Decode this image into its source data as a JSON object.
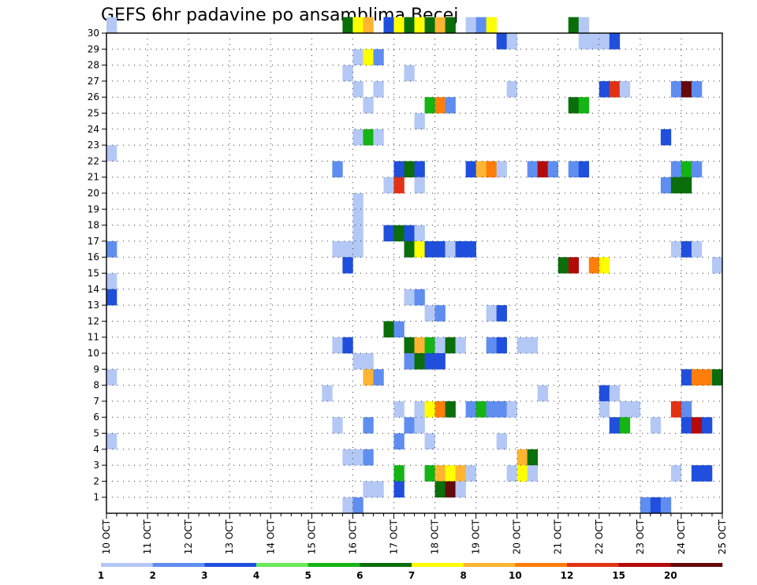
{
  "chart_data": {
    "type": "heatmap",
    "title": "GEFS 6hr padavine po ansamblima Becej",
    "x_ticks": [
      "10 OCT",
      "11 OCT",
      "12 OCT",
      "13 OCT",
      "14 OCT",
      "15 OCT",
      "16 OCT",
      "17 OCT",
      "18 OCT",
      "19 OCT",
      "20 OCT",
      "21 OCT",
      "22 OCT",
      "23 OCT",
      "24 OCT",
      "25 OCT"
    ],
    "y_ticks": [
      "1",
      "2",
      "3",
      "4",
      "5",
      "6",
      "7",
      "8",
      "9",
      "10",
      "11",
      "12",
      "13",
      "14",
      "15",
      "16",
      "17",
      "18",
      "19",
      "20",
      "21",
      "22",
      "23",
      "24",
      "25",
      "26",
      "27",
      "28",
      "29",
      "30"
    ],
    "xlim_steps": [
      0,
      60
    ],
    "ylim_members": [
      0,
      30
    ],
    "time_step_hours": 6,
    "grid": true,
    "legend": {
      "placement": "bottom",
      "labels": [
        "1",
        "2",
        "3",
        "4",
        "5",
        "6",
        "7",
        "8",
        "10",
        "12",
        "15",
        "20"
      ],
      "colors": [
        "#b4c8f5",
        "#5f8ef0",
        "#1f4fdc",
        "#6ce85a",
        "#14b414",
        "#0a6e0a",
        "#ffff00",
        "#ffb432",
        "#ff7d0a",
        "#e13214",
        "#b40a0a",
        "#640a0a"
      ]
    },
    "cells": [
      [
        30,
        0,
        0
      ],
      [
        30,
        23,
        5
      ],
      [
        30,
        24,
        6
      ],
      [
        30,
        25,
        7
      ],
      [
        30,
        27,
        2
      ],
      [
        30,
        28,
        6
      ],
      [
        30,
        29,
        5
      ],
      [
        30,
        30,
        6
      ],
      [
        30,
        31,
        5
      ],
      [
        30,
        32,
        7
      ],
      [
        30,
        33,
        5
      ],
      [
        30,
        35,
        0
      ],
      [
        30,
        36,
        1
      ],
      [
        30,
        37,
        6
      ],
      [
        30,
        45,
        5
      ],
      [
        30,
        46,
        0
      ],
      [
        29,
        38,
        2
      ],
      [
        29,
        39,
        0
      ],
      [
        29,
        46,
        0
      ],
      [
        29,
        47,
        0
      ],
      [
        29,
        48,
        0
      ],
      [
        29,
        49,
        2
      ],
      [
        28,
        24,
        0
      ],
      [
        28,
        25,
        6
      ],
      [
        28,
        26,
        1
      ],
      [
        27,
        23,
        0
      ],
      [
        27,
        29,
        0
      ],
      [
        26,
        24,
        0
      ],
      [
        26,
        26,
        0
      ],
      [
        26,
        39,
        0
      ],
      [
        26,
        48,
        2
      ],
      [
        26,
        49,
        9
      ],
      [
        26,
        50,
        0
      ],
      [
        26,
        55,
        1
      ],
      [
        26,
        56,
        11
      ],
      [
        26,
        57,
        1
      ],
      [
        25,
        25,
        0
      ],
      [
        25,
        31,
        4
      ],
      [
        25,
        32,
        8
      ],
      [
        25,
        33,
        1
      ],
      [
        25,
        45,
        5
      ],
      [
        25,
        46,
        4
      ],
      [
        24,
        30,
        0
      ],
      [
        23,
        24,
        0
      ],
      [
        23,
        25,
        4
      ],
      [
        23,
        26,
        0
      ],
      [
        23,
        54,
        2
      ],
      [
        22,
        0,
        0
      ],
      [
        21,
        22,
        1
      ],
      [
        21,
        28,
        2
      ],
      [
        21,
        29,
        5
      ],
      [
        21,
        30,
        2
      ],
      [
        21,
        35,
        2
      ],
      [
        21,
        36,
        7
      ],
      [
        21,
        37,
        8
      ],
      [
        21,
        38,
        0
      ],
      [
        21,
        41,
        1
      ],
      [
        21,
        42,
        10
      ],
      [
        21,
        43,
        1
      ],
      [
        21,
        45,
        1
      ],
      [
        21,
        46,
        2
      ],
      [
        21,
        55,
        1
      ],
      [
        21,
        56,
        4
      ],
      [
        21,
        57,
        1
      ],
      [
        20,
        27,
        0
      ],
      [
        20,
        28,
        9
      ],
      [
        20,
        30,
        0
      ],
      [
        20,
        54,
        1
      ],
      [
        20,
        55,
        5
      ],
      [
        20,
        56,
        5
      ],
      [
        19,
        24,
        0
      ],
      [
        18,
        24,
        0
      ],
      [
        17,
        24,
        0
      ],
      [
        17,
        27,
        2
      ],
      [
        17,
        28,
        5
      ],
      [
        17,
        29,
        2
      ],
      [
        17,
        30,
        0
      ],
      [
        16,
        0,
        1
      ],
      [
        16,
        22,
        0
      ],
      [
        16,
        23,
        0
      ],
      [
        16,
        24,
        0
      ],
      [
        16,
        29,
        5
      ],
      [
        16,
        30,
        6
      ],
      [
        16,
        31,
        2
      ],
      [
        16,
        32,
        2
      ],
      [
        16,
        33,
        0
      ],
      [
        16,
        34,
        2
      ],
      [
        16,
        35,
        2
      ],
      [
        16,
        55,
        0
      ],
      [
        16,
        56,
        2
      ],
      [
        16,
        57,
        0
      ],
      [
        15,
        23,
        2
      ],
      [
        15,
        44,
        5
      ],
      [
        15,
        45,
        10
      ],
      [
        15,
        47,
        8
      ],
      [
        15,
        48,
        6
      ],
      [
        15,
        59,
        0
      ],
      [
        14,
        0,
        0
      ],
      [
        13,
        0,
        2
      ],
      [
        13,
        29,
        0
      ],
      [
        13,
        30,
        1
      ],
      [
        12,
        31,
        0
      ],
      [
        12,
        32,
        1
      ],
      [
        12,
        37,
        0
      ],
      [
        12,
        38,
        2
      ],
      [
        11,
        27,
        5
      ],
      [
        11,
        28,
        1
      ],
      [
        10,
        22,
        0
      ],
      [
        10,
        23,
        2
      ],
      [
        10,
        29,
        5
      ],
      [
        10,
        30,
        7
      ],
      [
        10,
        31,
        4
      ],
      [
        10,
        32,
        0
      ],
      [
        10,
        33,
        5
      ],
      [
        10,
        34,
        0
      ],
      [
        10,
        37,
        1
      ],
      [
        10,
        38,
        2
      ],
      [
        10,
        40,
        0
      ],
      [
        10,
        41,
        0
      ],
      [
        9,
        24,
        0
      ],
      [
        9,
        25,
        0
      ],
      [
        9,
        29,
        1
      ],
      [
        9,
        30,
        5
      ],
      [
        9,
        31,
        2
      ],
      [
        9,
        32,
        2
      ],
      [
        8,
        0,
        0
      ],
      [
        8,
        25,
        7
      ],
      [
        8,
        26,
        1
      ],
      [
        8,
        56,
        2
      ],
      [
        8,
        57,
        8
      ],
      [
        8,
        58,
        8
      ],
      [
        8,
        59,
        5
      ],
      [
        7,
        21,
        0
      ],
      [
        7,
        42,
        0
      ],
      [
        7,
        48,
        2
      ],
      [
        7,
        49,
        0
      ],
      [
        6,
        28,
        0
      ],
      [
        6,
        30,
        0
      ],
      [
        6,
        31,
        6
      ],
      [
        6,
        32,
        8
      ],
      [
        6,
        33,
        5
      ],
      [
        6,
        35,
        1
      ],
      [
        6,
        36,
        4
      ],
      [
        6,
        37,
        1
      ],
      [
        6,
        38,
        1
      ],
      [
        6,
        39,
        0
      ],
      [
        6,
        48,
        0
      ],
      [
        6,
        50,
        0
      ],
      [
        6,
        51,
        0
      ],
      [
        6,
        55,
        9
      ],
      [
        6,
        56,
        1
      ],
      [
        5,
        22,
        0
      ],
      [
        5,
        25,
        1
      ],
      [
        5,
        29,
        1
      ],
      [
        5,
        30,
        0
      ],
      [
        5,
        49,
        2
      ],
      [
        5,
        50,
        4
      ],
      [
        5,
        53,
        0
      ],
      [
        5,
        56,
        2
      ],
      [
        5,
        57,
        10
      ],
      [
        5,
        58,
        2
      ],
      [
        4,
        0,
        0
      ],
      [
        4,
        28,
        1
      ],
      [
        4,
        31,
        0
      ],
      [
        4,
        38,
        0
      ],
      [
        3,
        23,
        0
      ],
      [
        3,
        24,
        0
      ],
      [
        3,
        25,
        1
      ],
      [
        3,
        40,
        7
      ],
      [
        3,
        41,
        5
      ],
      [
        2,
        28,
        4
      ],
      [
        2,
        31,
        4
      ],
      [
        2,
        32,
        7
      ],
      [
        2,
        33,
        6
      ],
      [
        2,
        34,
        7
      ],
      [
        2,
        35,
        0
      ],
      [
        2,
        39,
        0
      ],
      [
        2,
        40,
        6
      ],
      [
        2,
        41,
        0
      ],
      [
        2,
        55,
        0
      ],
      [
        2,
        57,
        2
      ],
      [
        2,
        58,
        2
      ],
      [
        1,
        25,
        0
      ],
      [
        1,
        26,
        0
      ],
      [
        1,
        28,
        2
      ],
      [
        1,
        32,
        5
      ],
      [
        1,
        33,
        11
      ],
      [
        1,
        34,
        0
      ],
      [
        0,
        23,
        0
      ],
      [
        0,
        24,
        1
      ],
      [
        0,
        52,
        1
      ],
      [
        0,
        53,
        2
      ],
      [
        0,
        54,
        1
      ]
    ]
  }
}
